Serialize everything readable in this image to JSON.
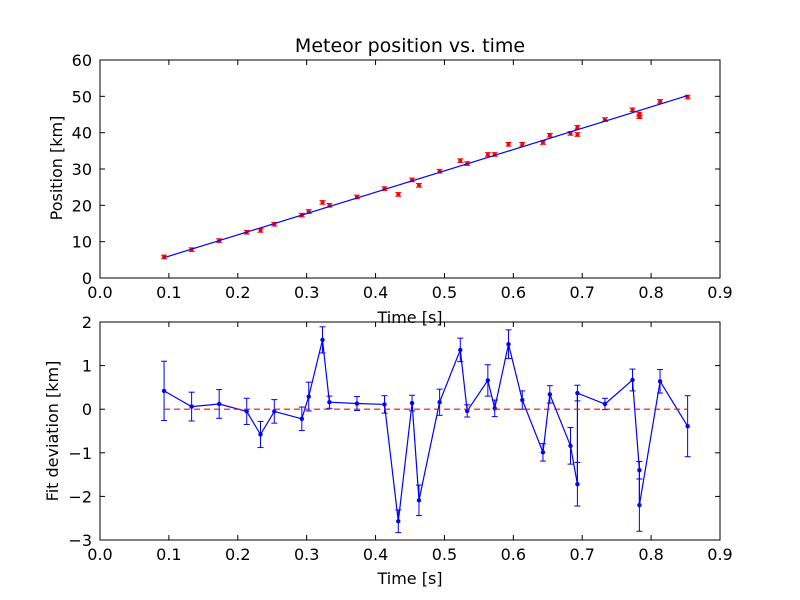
{
  "colors": {
    "fit_line": "#0000ff",
    "measurement": "#ff0000",
    "deviation": "#0000ff",
    "zero_line": "#ff0000",
    "axes": "#000000",
    "background": "#ffffff"
  },
  "chart_data": [
    {
      "type": "scatter",
      "title": "Meteor position vs. time",
      "xlabel": "Time [s]",
      "ylabel": "Position [km]",
      "xlim": [
        0.0,
        0.9
      ],
      "ylim": [
        0,
        60
      ],
      "xticks": [
        "0.0",
        "0.1",
        "0.2",
        "0.3",
        "0.4",
        "0.5",
        "0.6",
        "0.7",
        "0.8",
        "0.9"
      ],
      "yticks": [
        "0",
        "10",
        "20",
        "30",
        "40",
        "50",
        "60"
      ],
      "grid": false,
      "series": [
        {
          "kind": "errorbar-points",
          "color": "#ff0000",
          "error": 0.5,
          "x": [
            0.093,
            0.133,
            0.173,
            0.213,
            0.233,
            0.253,
            0.293,
            0.303,
            0.323,
            0.333,
            0.373,
            0.413,
            0.433,
            0.453,
            0.463,
            0.493,
            0.523,
            0.533,
            0.563,
            0.573,
            0.593,
            0.613,
            0.643,
            0.653,
            0.683,
            0.693,
            0.693,
            0.733,
            0.773,
            0.783,
            0.783,
            0.813,
            0.853
          ],
          "y": [
            5.8,
            7.8,
            10.3,
            12.6,
            13.1,
            14.8,
            17.3,
            18.3,
            20.8,
            20.0,
            22.3,
            24.6,
            23.0,
            27.0,
            25.5,
            29.4,
            32.3,
            31.5,
            34.0,
            34.0,
            36.8,
            36.8,
            37.3,
            39.3,
            39.8,
            39.5,
            41.5,
            43.6,
            46.3,
            44.4,
            45.1,
            48.6,
            49.8
          ]
        },
        {
          "kind": "fit-line",
          "color": "#0000ff",
          "x": [
            0.093,
            0.853
          ],
          "y": [
            5.6,
            50.2
          ]
        }
      ]
    },
    {
      "type": "line",
      "title": "",
      "xlabel": "Time [s]",
      "ylabel": "Fit deviation [km]",
      "xlim": [
        0.0,
        0.9
      ],
      "ylim": [
        -3,
        2
      ],
      "xticks": [
        "0.0",
        "0.1",
        "0.2",
        "0.3",
        "0.4",
        "0.5",
        "0.6",
        "0.7",
        "0.8",
        "0.9"
      ],
      "yticks": [
        "−3",
        "−2",
        "−1",
        "0",
        "1",
        "2"
      ],
      "grid": false,
      "series": [
        {
          "kind": "errorbar-line",
          "color": "#0000ff",
          "x": [
            0.093,
            0.133,
            0.173,
            0.213,
            0.233,
            0.253,
            0.293,
            0.303,
            0.323,
            0.333,
            0.373,
            0.413,
            0.433,
            0.453,
            0.463,
            0.493,
            0.523,
            0.533,
            0.563,
            0.573,
            0.593,
            0.613,
            0.643,
            0.653,
            0.683,
            0.693,
            0.693,
            0.733,
            0.773,
            0.783,
            0.783,
            0.813,
            0.853
          ],
          "y": [
            0.42,
            0.06,
            0.12,
            -0.05,
            -0.58,
            -0.05,
            -0.22,
            0.29,
            1.59,
            0.16,
            0.13,
            0.11,
            -2.57,
            0.14,
            -2.09,
            0.16,
            1.36,
            -0.04,
            0.66,
            0.02,
            1.49,
            0.21,
            -0.99,
            0.34,
            -0.84,
            -1.72,
            0.37,
            0.12,
            0.67,
            -1.4,
            -2.2,
            0.64,
            -0.39
          ],
          "err": [
            0.68,
            0.33,
            0.33,
            0.3,
            0.3,
            0.27,
            0.27,
            0.33,
            0.3,
            0.14,
            0.16,
            0.2,
            0.26,
            0.18,
            0.35,
            0.3,
            0.27,
            0.14,
            0.36,
            0.19,
            0.33,
            0.21,
            0.2,
            0.2,
            0.42,
            0.5,
            0.18,
            0.13,
            0.25,
            0.2,
            0.6,
            0.27,
            0.7
          ]
        },
        {
          "kind": "zero-line",
          "color": "#ff0000",
          "dashed": true,
          "x": [
            0.093,
            0.853
          ],
          "y": [
            0,
            0
          ]
        }
      ]
    }
  ]
}
